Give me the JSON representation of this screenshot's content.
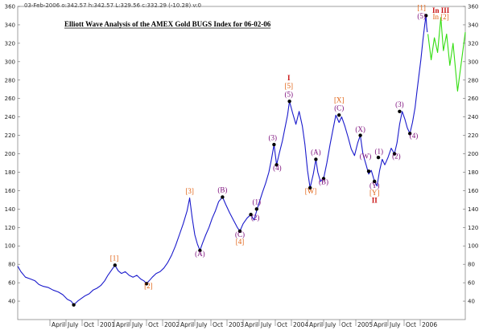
{
  "header": "03-Feb-2006  o:342.57 h:342.57 L:329.56 c:332.29 (-10.28) v:0",
  "chart_data": {
    "type": "line",
    "title": "Elliott Wave Analysis of the AMEX Gold BUGS Index for 06-02-06",
    "xlabel": "",
    "ylabel": "",
    "ylim": [
      20,
      360
    ],
    "y_ticks": [
      40,
      60,
      80,
      100,
      120,
      140,
      160,
      180,
      200,
      220,
      240,
      260,
      280,
      300,
      320,
      340,
      360
    ],
    "x_range": [
      1999.75,
      2006.7
    ],
    "x_ticks": [
      {
        "x": 2000.25,
        "label": "April"
      },
      {
        "x": 2000.5,
        "label": "July"
      },
      {
        "x": 2000.75,
        "label": "Oct"
      },
      {
        "x": 2001.0,
        "label": "2001"
      },
      {
        "x": 2001.25,
        "label": "April"
      },
      {
        "x": 2001.5,
        "label": "July"
      },
      {
        "x": 2001.75,
        "label": "Oct"
      },
      {
        "x": 2002.0,
        "label": "2002"
      },
      {
        "x": 2002.25,
        "label": "April"
      },
      {
        "x": 2002.5,
        "label": "July"
      },
      {
        "x": 2002.75,
        "label": "Oct"
      },
      {
        "x": 2003.0,
        "label": "2003"
      },
      {
        "x": 2003.25,
        "label": "April"
      },
      {
        "x": 2003.5,
        "label": "July"
      },
      {
        "x": 2003.75,
        "label": "Oct"
      },
      {
        "x": 2004.0,
        "label": "2004"
      },
      {
        "x": 2004.25,
        "label": "April"
      },
      {
        "x": 2004.5,
        "label": "July"
      },
      {
        "x": 2004.75,
        "label": "Oct"
      },
      {
        "x": 2005.0,
        "label": "2005"
      },
      {
        "x": 2005.25,
        "label": "April"
      },
      {
        "x": 2005.5,
        "label": "July"
      },
      {
        "x": 2005.75,
        "label": "Oct"
      },
      {
        "x": 2006.0,
        "label": "2006"
      }
    ],
    "series": [
      {
        "color": "#1a1acc",
        "points": [
          [
            1999.75,
            78
          ],
          [
            1999.8,
            72
          ],
          [
            1999.87,
            66
          ],
          [
            1999.95,
            64
          ],
          [
            2000.02,
            62
          ],
          [
            2000.08,
            58
          ],
          [
            2000.15,
            56
          ],
          [
            2000.22,
            55
          ],
          [
            2000.3,
            52
          ],
          [
            2000.38,
            50
          ],
          [
            2000.45,
            47
          ],
          [
            2000.52,
            42
          ],
          [
            2000.58,
            40
          ],
          [
            2000.62,
            36
          ],
          [
            2000.68,
            40
          ],
          [
            2000.74,
            43
          ],
          [
            2000.8,
            46
          ],
          [
            2000.86,
            48
          ],
          [
            2000.92,
            52
          ],
          [
            2000.98,
            54
          ],
          [
            2001.04,
            57
          ],
          [
            2001.1,
            62
          ],
          [
            2001.15,
            68
          ],
          [
            2001.21,
            74
          ],
          [
            2001.26,
            79
          ],
          [
            2001.31,
            73
          ],
          [
            2001.36,
            70
          ],
          [
            2001.42,
            72
          ],
          [
            2001.48,
            68
          ],
          [
            2001.54,
            66
          ],
          [
            2001.6,
            68
          ],
          [
            2001.66,
            64
          ],
          [
            2001.71,
            62
          ],
          [
            2001.75,
            59
          ],
          [
            2001.79,
            62
          ],
          [
            2001.84,
            66
          ],
          [
            2001.9,
            70
          ],
          [
            2001.96,
            72
          ],
          [
            2002.02,
            76
          ],
          [
            2002.08,
            82
          ],
          [
            2002.14,
            90
          ],
          [
            2002.2,
            100
          ],
          [
            2002.26,
            112
          ],
          [
            2002.32,
            124
          ],
          [
            2002.38,
            138
          ],
          [
            2002.42,
            152
          ],
          [
            2002.46,
            130
          ],
          [
            2002.5,
            112
          ],
          [
            2002.54,
            102
          ],
          [
            2002.58,
            95
          ],
          [
            2002.62,
            103
          ],
          [
            2002.67,
            112
          ],
          [
            2002.72,
            120
          ],
          [
            2002.77,
            130
          ],
          [
            2002.82,
            138
          ],
          [
            2002.87,
            148
          ],
          [
            2002.93,
            153
          ],
          [
            2002.98,
            145
          ],
          [
            2003.04,
            136
          ],
          [
            2003.1,
            128
          ],
          [
            2003.16,
            120
          ],
          [
            2003.2,
            116
          ],
          [
            2003.25,
            124
          ],
          [
            2003.31,
            130
          ],
          [
            2003.37,
            134
          ],
          [
            2003.42,
            128
          ],
          [
            2003.46,
            138
          ],
          [
            2003.5,
            147
          ],
          [
            2003.55,
            158
          ],
          [
            2003.6,
            168
          ],
          [
            2003.65,
            180
          ],
          [
            2003.69,
            194
          ],
          [
            2003.73,
            210
          ],
          [
            2003.77,
            188
          ],
          [
            2003.81,
            200
          ],
          [
            2003.86,
            214
          ],
          [
            2003.9,
            228
          ],
          [
            2003.94,
            242
          ],
          [
            2003.97,
            257
          ],
          [
            2004.02,
            244
          ],
          [
            2004.07,
            232
          ],
          [
            2004.12,
            246
          ],
          [
            2004.17,
            230
          ],
          [
            2004.21,
            210
          ],
          [
            2004.25,
            182
          ],
          [
            2004.29,
            163
          ],
          [
            2004.34,
            178
          ],
          [
            2004.38,
            194
          ],
          [
            2004.41,
            180
          ],
          [
            2004.45,
            170
          ],
          [
            2004.5,
            173
          ],
          [
            2004.55,
            190
          ],
          [
            2004.6,
            210
          ],
          [
            2004.65,
            228
          ],
          [
            2004.69,
            242
          ],
          [
            2004.74,
            234
          ],
          [
            2004.78,
            240
          ],
          [
            2004.83,
            230
          ],
          [
            2004.88,
            218
          ],
          [
            2004.93,
            205
          ],
          [
            2004.98,
            198
          ],
          [
            2005.03,
            212
          ],
          [
            2005.07,
            220
          ],
          [
            2005.11,
            200
          ],
          [
            2005.16,
            188
          ],
          [
            2005.2,
            178
          ],
          [
            2005.24,
            182
          ],
          [
            2005.29,
            170
          ],
          [
            2005.33,
            165
          ],
          [
            2005.37,
            182
          ],
          [
            2005.41,
            194
          ],
          [
            2005.45,
            188
          ],
          [
            2005.5,
            196
          ],
          [
            2005.55,
            206
          ],
          [
            2005.6,
            200
          ],
          [
            2005.64,
            212
          ],
          [
            2005.68,
            232
          ],
          [
            2005.72,
            246
          ],
          [
            2005.76,
            238
          ],
          [
            2005.8,
            228
          ],
          [
            2005.84,
            222
          ],
          [
            2005.88,
            234
          ],
          [
            2005.92,
            250
          ],
          [
            2005.95,
            268
          ],
          [
            2005.98,
            285
          ],
          [
            2006.01,
            302
          ],
          [
            2006.04,
            322
          ],
          [
            2006.07,
            340
          ],
          [
            2006.09,
            350
          ],
          [
            2006.1,
            338
          ],
          [
            2006.11,
            332
          ]
        ]
      },
      {
        "color": "#33dd11",
        "points": [
          [
            2006.12,
            330
          ],
          [
            2006.17,
            302
          ],
          [
            2006.22,
            326
          ],
          [
            2006.27,
            310
          ],
          [
            2006.32,
            348
          ],
          [
            2006.36,
            312
          ],
          [
            2006.41,
            330
          ],
          [
            2006.46,
            296
          ],
          [
            2006.51,
            320
          ],
          [
            2006.58,
            268
          ],
          [
            2006.7,
            332
          ]
        ]
      }
    ],
    "markers": [
      [
        2000.62,
        36
      ],
      [
        2001.26,
        79
      ],
      [
        2001.75,
        59
      ],
      [
        2002.58,
        95
      ],
      [
        2002.93,
        153
      ],
      [
        2003.2,
        116
      ],
      [
        2003.37,
        134
      ],
      [
        2003.46,
        140
      ],
      [
        2003.73,
        210
      ],
      [
        2003.77,
        188
      ],
      [
        2003.97,
        257
      ],
      [
        2004.29,
        163
      ],
      [
        2004.38,
        194
      ],
      [
        2004.5,
        173
      ],
      [
        2004.74,
        242
      ],
      [
        2005.07,
        220
      ],
      [
        2005.2,
        181
      ],
      [
        2005.29,
        170
      ],
      [
        2005.35,
        196
      ],
      [
        2005.6,
        200
      ],
      [
        2005.68,
        246
      ],
      [
        2005.84,
        222
      ],
      [
        2006.09,
        350
      ]
    ],
    "annotations": [
      {
        "text": "[1]",
        "x": 2001.25,
        "y": 84,
        "color": "#e06010"
      },
      {
        "text": "[2]",
        "x": 2001.78,
        "y": 54,
        "color": "#e06010"
      },
      {
        "text": "[3]",
        "x": 2002.42,
        "y": 157,
        "color": "#e06010"
      },
      {
        "text": "(A)",
        "x": 2002.58,
        "y": 89,
        "color": "#7a0a7a"
      },
      {
        "text": "(B)",
        "x": 2002.93,
        "y": 158,
        "color": "#7a0a7a"
      },
      {
        "text": "(C)",
        "x": 2003.2,
        "y": 110,
        "color": "#7a0a7a"
      },
      {
        "text": "[4]",
        "x": 2003.2,
        "y": 102,
        "color": "#e06010"
      },
      {
        "text": "(1)",
        "x": 2003.46,
        "y": 145,
        "color": "#7a0a7a"
      },
      {
        "text": "(2)",
        "x": 2003.44,
        "y": 128,
        "color": "#7a0a7a"
      },
      {
        "text": "(3)",
        "x": 2003.71,
        "y": 215,
        "color": "#7a0a7a"
      },
      {
        "text": "(4)",
        "x": 2003.78,
        "y": 182,
        "color": "#7a0a7a"
      },
      {
        "text": "I",
        "x": 2003.96,
        "y": 280,
        "color": "#c81010"
      },
      {
        "text": "[5]",
        "x": 2003.96,
        "y": 271,
        "color": "#e06010"
      },
      {
        "text": "(5)",
        "x": 2003.96,
        "y": 262,
        "color": "#7a0a7a"
      },
      {
        "text": "(A)",
        "x": 2004.38,
        "y": 199,
        "color": "#7a0a7a"
      },
      {
        "text": "[W]",
        "x": 2004.3,
        "y": 157,
        "color": "#e06010"
      },
      {
        "text": "(B)",
        "x": 2004.5,
        "y": 167,
        "color": "#7a0a7a"
      },
      {
        "text": "[X]",
        "x": 2004.74,
        "y": 256,
        "color": "#e06010"
      },
      {
        "text": "(C)",
        "x": 2004.74,
        "y": 247,
        "color": "#7a0a7a"
      },
      {
        "text": "(X)",
        "x": 2005.07,
        "y": 224,
        "color": "#7a0a7a"
      },
      {
        "text": "(W)",
        "x": 2005.15,
        "y": 195,
        "color": "#7a0a7a"
      },
      {
        "text": "(1)",
        "x": 2005.36,
        "y": 200,
        "color": "#7a0a7a"
      },
      {
        "text": "(Y)",
        "x": 2005.29,
        "y": 163,
        "color": "#7a0a7a"
      },
      {
        "text": "[Y]",
        "x": 2005.29,
        "y": 155,
        "color": "#e06010"
      },
      {
        "text": "II",
        "x": 2005.29,
        "y": 147,
        "color": "#c81010"
      },
      {
        "text": "(2)",
        "x": 2005.63,
        "y": 195,
        "color": "#7a0a7a"
      },
      {
        "text": "(3)",
        "x": 2005.68,
        "y": 251,
        "color": "#7a0a7a"
      },
      {
        "text": "(4)",
        "x": 2005.9,
        "y": 217,
        "color": "#7a0a7a"
      },
      {
        "text": "[1]",
        "x": 2006.02,
        "y": 356,
        "color": "#e06010"
      },
      {
        "text": "(5)",
        "x": 2006.02,
        "y": 347,
        "color": "#7a0a7a"
      },
      {
        "text": "In III",
        "x": 2006.32,
        "y": 353,
        "color": "#c81010"
      },
      {
        "text": "In [2]",
        "x": 2006.32,
        "y": 346,
        "color": "#e06010"
      }
    ]
  }
}
